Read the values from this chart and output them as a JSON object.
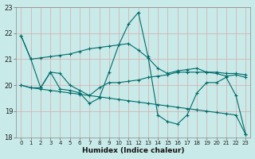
{
  "xlabel": "Humidex (Indice chaleur)",
  "background_color": "#c8eae8",
  "grid_color": "#d8a8a8",
  "line_color": "#006b6b",
  "xlim": [
    -0.5,
    23.5
  ],
  "ylim": [
    18,
    23
  ],
  "yticks": [
    18,
    19,
    20,
    21,
    22,
    23
  ],
  "xticks": [
    0,
    1,
    2,
    3,
    4,
    5,
    6,
    7,
    8,
    9,
    10,
    11,
    12,
    13,
    14,
    15,
    16,
    17,
    18,
    19,
    20,
    21,
    22,
    23
  ],
  "line1_y": [
    21.9,
    21.0,
    21.05,
    21.1,
    21.15,
    21.2,
    21.3,
    21.4,
    21.45,
    21.5,
    21.55,
    21.6,
    21.35,
    21.05,
    20.65,
    20.45,
    20.55,
    20.6,
    20.65,
    20.5,
    20.45,
    20.35,
    20.4,
    20.3
  ],
  "line2_y": [
    21.9,
    21.0,
    19.9,
    20.5,
    19.85,
    19.8,
    19.7,
    19.3,
    19.5,
    20.5,
    21.55,
    22.35,
    22.8,
    21.1,
    18.85,
    18.6,
    18.5,
    18.85,
    19.7,
    20.1,
    20.1,
    20.3,
    19.6,
    18.1
  ],
  "line3_y": [
    20.0,
    19.9,
    19.85,
    19.8,
    19.75,
    19.7,
    19.65,
    19.6,
    19.55,
    19.5,
    19.45,
    19.4,
    19.35,
    19.3,
    19.25,
    19.2,
    19.15,
    19.1,
    19.05,
    19.0,
    18.95,
    18.9,
    18.85,
    18.1
  ],
  "line4_y": [
    20.0,
    19.9,
    19.9,
    20.5,
    20.45,
    20.0,
    19.8,
    19.6,
    19.9,
    20.1,
    20.1,
    20.15,
    20.2,
    20.3,
    20.35,
    20.4,
    20.5,
    20.5,
    20.5,
    20.5,
    20.5,
    20.45,
    20.45,
    20.4
  ]
}
